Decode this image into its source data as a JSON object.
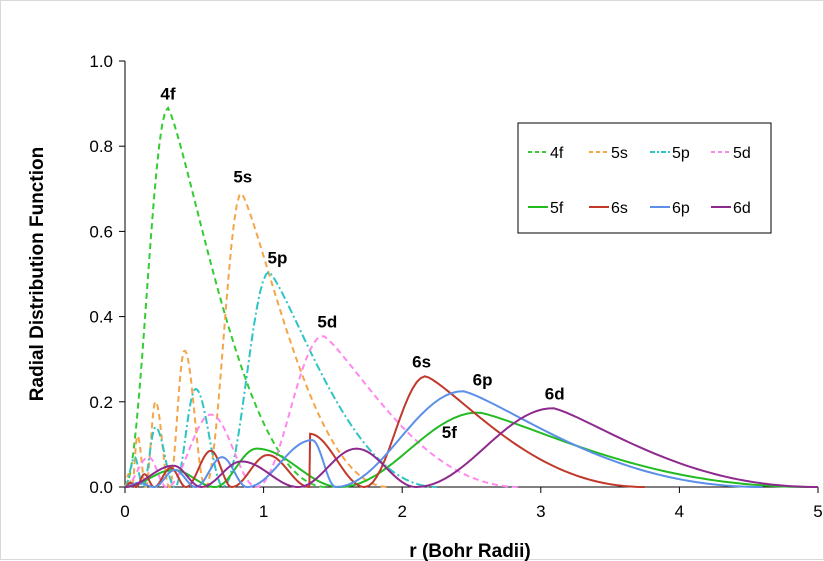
{
  "chart_data": {
    "type": "line",
    "title": "",
    "xlabel": "r (Bohr Radii)",
    "ylabel": "Radial Distribution Function",
    "xlim": [
      0,
      5
    ],
    "ylim": [
      0,
      1.0
    ],
    "xticks": [
      "0",
      "1",
      "2",
      "3",
      "4",
      "5"
    ],
    "yticks": [
      "0.0",
      "0.2",
      "0.4",
      "0.6",
      "0.8",
      "1.0"
    ],
    "grid": false,
    "legend_position": "top-right",
    "series": [
      {
        "name": "4f",
        "dash": "dashed",
        "color": "#33cc33",
        "nodes": [],
        "peaks": [
          [
            0.31,
            0.89
          ]
        ],
        "end": 1.45
      },
      {
        "name": "5s",
        "dash": "dashed",
        "color": "#f4a54a",
        "nodes": [
          0.05,
          0.15,
          0.32,
          0.58
        ],
        "peaks": [
          [
            0.025,
            0.03
          ],
          [
            0.09,
            0.12
          ],
          [
            0.22,
            0.2
          ],
          [
            0.43,
            0.32
          ],
          [
            0.84,
            0.69
          ]
        ],
        "end": 1.9
      },
      {
        "name": "5p",
        "dash": "dashdot",
        "color": "#2ec4c4",
        "nodes": [
          0.13,
          0.36,
          0.71
        ],
        "peaks": [
          [
            0.07,
            0.07
          ],
          [
            0.22,
            0.14
          ],
          [
            0.51,
            0.23
          ],
          [
            1.04,
            0.505
          ]
        ],
        "end": 2.25
      },
      {
        "name": "5d",
        "dash": "dashed",
        "color": "#ff88ee",
        "nodes": [
          0.3,
          0.95
        ],
        "peaks": [
          [
            0.17,
            0.07
          ],
          [
            0.62,
            0.17
          ],
          [
            1.43,
            0.355
          ]
        ],
        "end": 2.85
      },
      {
        "name": "5f",
        "dash": "solid",
        "color": "#22bb22",
        "nodes": [
          0.65,
          1.55
        ],
        "peaks": [
          [
            0.35,
            0.04
          ],
          [
            0.95,
            0.09
          ],
          [
            2.55,
            0.175
          ]
        ],
        "end": 4.95
      },
      {
        "name": "6s",
        "dash": "solid",
        "color": "#c0392b",
        "nodes": [
          0.08,
          0.21,
          0.44,
          0.77,
          1.33,
          1.73
        ],
        "peaks": [
          [
            0.04,
            0.01
          ],
          [
            0.14,
            0.03
          ],
          [
            0.33,
            0.045
          ],
          [
            0.62,
            0.085
          ],
          [
            1.03,
            0.075
          ],
          [
            1.23,
            0.125
          ],
          [
            2.17,
            0.26
          ]
        ],
        "end": 3.75
      },
      {
        "name": "6p",
        "dash": "solid",
        "color": "#5b8fe8",
        "nodes": [
          0.21,
          0.51,
          0.88,
          1.52
        ],
        "peaks": [
          [
            0.1,
            0.01
          ],
          [
            0.36,
            0.04
          ],
          [
            0.7,
            0.07
          ],
          [
            1.35,
            0.11
          ],
          [
            2.44,
            0.225
          ]
        ],
        "end": 4.6
      },
      {
        "name": "6d",
        "dash": "solid",
        "color": "#8e2a8e",
        "nodes": [
          0.55,
          1.25,
          2.1
        ],
        "peaks": [
          [
            0.35,
            0.05
          ],
          [
            0.84,
            0.06
          ],
          [
            1.67,
            0.09
          ],
          [
            3.09,
            0.185
          ]
        ],
        "end": 5.0
      }
    ],
    "annotations": [
      {
        "text": "4f",
        "x": 0.31,
        "y": 0.91
      },
      {
        "text": "5s",
        "x": 0.85,
        "y": 0.715
      },
      {
        "text": "5p",
        "x": 1.1,
        "y": 0.525
      },
      {
        "text": "5d",
        "x": 1.46,
        "y": 0.375
      },
      {
        "text": "6s",
        "x": 2.14,
        "y": 0.28
      },
      {
        "text": "6p",
        "x": 2.58,
        "y": 0.238
      },
      {
        "text": "5f",
        "x": 2.34,
        "y": 0.115
      },
      {
        "text": "6d",
        "x": 3.1,
        "y": 0.205
      }
    ]
  }
}
